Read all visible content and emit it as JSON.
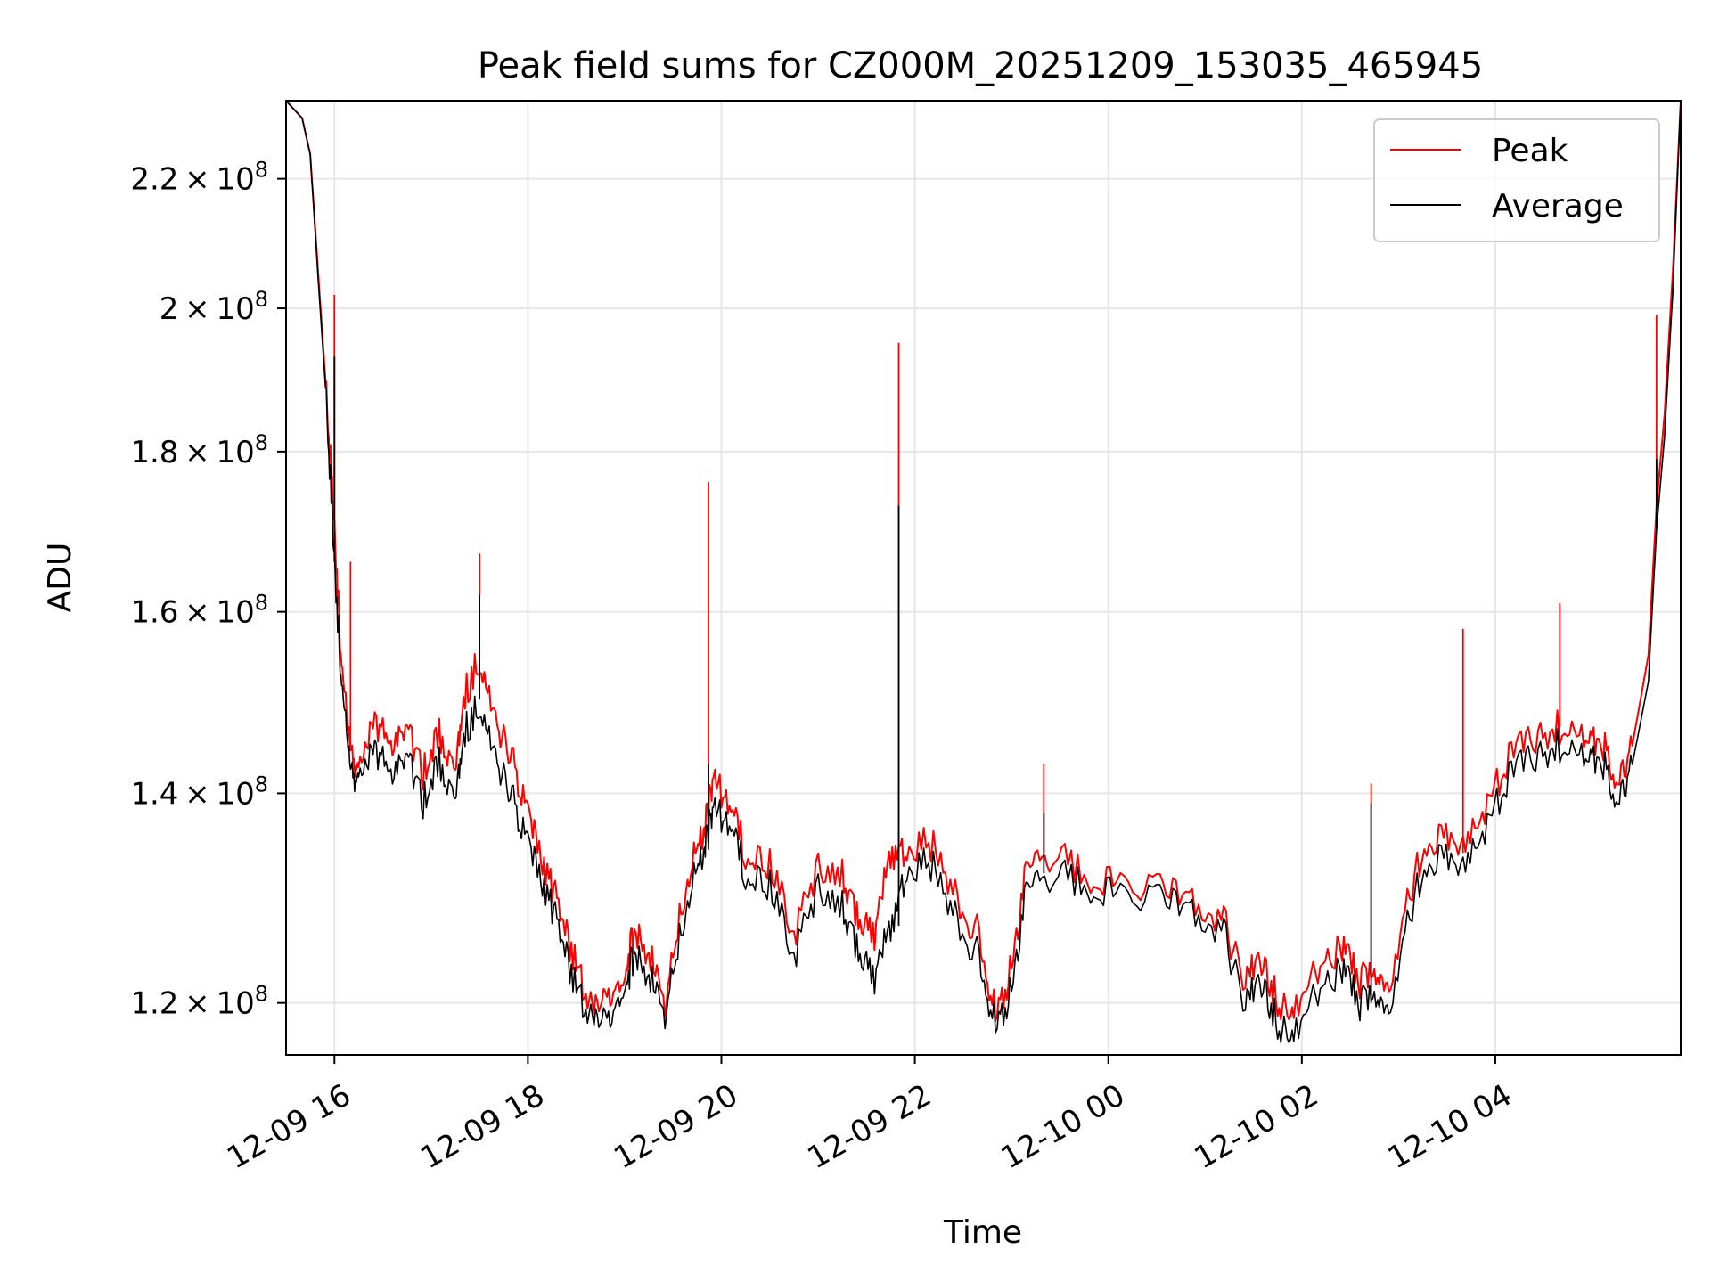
{
  "chart_data": {
    "type": "line",
    "title": "Peak field sums for CZ000M_20251209_153035_465945",
    "xlabel": "Time",
    "ylabel": "ADU",
    "y_scale": "log",
    "ylim": [
      115500000.0,
      233000000.0
    ],
    "xlim": [
      "2025-12-09 15:30",
      "2025-12-10 05:55"
    ],
    "grid": true,
    "legend_position": "upper right",
    "x_ticks": [
      {
        "label": "12-09 16",
        "value": "2025-12-09 16:00"
      },
      {
        "label": "12-09 18",
        "value": "2025-12-09 18:00"
      },
      {
        "label": "12-09 20",
        "value": "2025-12-09 20:00"
      },
      {
        "label": "12-09 22",
        "value": "2025-12-09 22:00"
      },
      {
        "label": "12-10 00",
        "value": "2025-12-10 00:00"
      },
      {
        "label": "12-10 02",
        "value": "2025-12-10 02:00"
      },
      {
        "label": "12-10 04",
        "value": "2025-12-10 04:00"
      }
    ],
    "y_ticks": [
      {
        "mantissa": "1.2",
        "exponent": "8",
        "value": 120000000.0
      },
      {
        "mantissa": "1.4",
        "exponent": "8",
        "value": 140000000.0
      },
      {
        "mantissa": "1.6",
        "exponent": "8",
        "value": 160000000.0
      },
      {
        "mantissa": "1.8",
        "exponent": "8",
        "value": 180000000.0
      },
      {
        "mantissa": "2",
        "exponent": "8",
        "value": 200000000.0
      },
      {
        "mantissa": "2.2",
        "exponent": "8",
        "value": 220000000.0
      }
    ],
    "series": [
      {
        "name": "Peak",
        "color": "#ff0000",
        "points": [
          [
            "2025-12-09 15:30",
            233000000.0
          ],
          [
            "2025-12-09 15:40",
            230000000.0
          ],
          [
            "2025-12-09 15:45",
            224000000.0
          ],
          [
            "2025-12-09 15:50",
            205000000.0
          ],
          [
            "2025-12-09 15:55",
            188000000.0
          ],
          [
            "2025-12-09 16:00",
            170000000.0
          ],
          [
            "2025-12-09 16:05",
            152000000.0
          ],
          [
            "2025-12-09 16:10",
            145000000.0
          ],
          [
            "2025-12-09 16:15",
            142000000.0
          ],
          [
            "2025-12-09 16:25",
            148000000.0
          ],
          [
            "2025-12-09 16:35",
            145000000.0
          ],
          [
            "2025-12-09 16:45",
            147000000.0
          ],
          [
            "2025-12-09 16:55",
            142000000.0
          ],
          [
            "2025-12-09 17:05",
            146000000.0
          ],
          [
            "2025-12-09 17:15",
            143000000.0
          ],
          [
            "2025-12-09 17:20",
            150000000.0
          ],
          [
            "2025-12-09 17:30",
            155000000.0
          ],
          [
            "2025-12-09 17:40",
            148000000.0
          ],
          [
            "2025-12-09 17:50",
            144000000.0
          ],
          [
            "2025-12-09 18:00",
            138000000.0
          ],
          [
            "2025-12-09 18:10",
            132000000.0
          ],
          [
            "2025-12-09 18:20",
            129000000.0
          ],
          [
            "2025-12-09 18:30",
            123000000.0
          ],
          [
            "2025-12-09 18:40",
            120000000.0
          ],
          [
            "2025-12-09 18:50",
            121000000.0
          ],
          [
            "2025-12-09 19:00",
            122000000.0
          ],
          [
            "2025-12-09 19:05",
            126000000.0
          ],
          [
            "2025-12-09 19:15",
            125000000.0
          ],
          [
            "2025-12-09 19:25",
            119000000.0
          ],
          [
            "2025-12-09 19:35",
            129000000.0
          ],
          [
            "2025-12-09 19:45",
            135000000.0
          ],
          [
            "2025-12-09 19:50",
            137000000.0
          ],
          [
            "2025-12-09 19:55",
            141000000.0
          ],
          [
            "2025-12-09 20:05",
            139000000.0
          ],
          [
            "2025-12-09 20:15",
            134000000.0
          ],
          [
            "2025-12-09 20:30",
            133000000.0
          ],
          [
            "2025-12-09 20:45",
            126000000.0
          ],
          [
            "2025-12-09 21:00",
            133000000.0
          ],
          [
            "2025-12-09 21:15",
            132000000.0
          ],
          [
            "2025-12-09 21:25",
            128000000.0
          ],
          [
            "2025-12-09 21:35",
            126000000.0
          ],
          [
            "2025-12-09 21:45",
            134000000.0
          ],
          [
            "2025-12-09 21:55",
            134000000.0
          ],
          [
            "2025-12-09 22:10",
            135000000.0
          ],
          [
            "2025-12-09 22:25",
            130000000.0
          ],
          [
            "2025-12-09 22:40",
            126000000.0
          ],
          [
            "2025-12-09 22:50",
            119000000.0
          ],
          [
            "2025-12-09 23:00",
            123000000.0
          ],
          [
            "2025-12-09 23:10",
            133000000.0
          ],
          [
            "2025-12-09 23:25",
            134000000.0
          ],
          [
            "2025-12-09 23:45",
            132000000.0
          ],
          [
            "2025-12-10 00:05",
            131000000.0
          ],
          [
            "2025-12-10 00:30",
            131000000.0
          ],
          [
            "2025-12-10 00:50",
            129000000.0
          ],
          [
            "2025-12-10 01:10",
            128000000.0
          ],
          [
            "2025-12-10 01:25",
            122000000.0
          ],
          [
            "2025-12-10 01:35",
            124000000.0
          ],
          [
            "2025-12-10 01:45",
            120000000.0
          ],
          [
            "2025-12-10 01:55",
            119000000.0
          ],
          [
            "2025-12-10 02:10",
            123000000.0
          ],
          [
            "2025-12-10 02:25",
            125000000.0
          ],
          [
            "2025-12-10 02:35",
            122000000.0
          ],
          [
            "2025-12-10 02:45",
            122000000.0
          ],
          [
            "2025-12-10 02:55",
            122000000.0
          ],
          [
            "2025-12-10 03:10",
            132000000.0
          ],
          [
            "2025-12-10 03:25",
            136000000.0
          ],
          [
            "2025-12-10 03:40",
            134000000.0
          ],
          [
            "2025-12-10 03:55",
            139000000.0
          ],
          [
            "2025-12-10 04:10",
            144000000.0
          ],
          [
            "2025-12-10 04:25",
            146000000.0
          ],
          [
            "2025-12-10 04:40",
            147000000.0
          ],
          [
            "2025-12-10 04:55",
            146000000.0
          ],
          [
            "2025-12-10 05:05",
            146000000.0
          ],
          [
            "2025-12-10 05:15",
            141000000.0
          ],
          [
            "2025-12-10 05:25",
            145000000.0
          ],
          [
            "2025-12-10 05:35",
            155000000.0
          ],
          [
            "2025-12-10 05:40",
            173000000.0
          ],
          [
            "2025-12-10 05:45",
            185000000.0
          ],
          [
            "2025-12-10 05:50",
            205000000.0
          ],
          [
            "2025-12-10 05:55",
            233000000.0
          ]
        ],
        "spikes": [
          [
            "2025-12-09 16:00",
            202000000.0
          ],
          [
            "2025-12-09 16:10",
            166000000.0
          ],
          [
            "2025-12-09 17:30",
            167000000.0
          ],
          [
            "2025-12-09 19:52",
            176000000.0
          ],
          [
            "2025-12-09 21:50",
            195000000.0
          ],
          [
            "2025-12-09 23:20",
            143000000.0
          ],
          [
            "2025-12-10 02:43",
            141000000.0
          ],
          [
            "2025-12-10 03:40",
            158000000.0
          ],
          [
            "2025-12-10 04:40",
            161000000.0
          ],
          [
            "2025-12-10 05:40",
            199000000.0
          ]
        ]
      },
      {
        "name": "Average",
        "color": "#000000",
        "points": [
          [
            "2025-12-09 15:30",
            233000000.0
          ],
          [
            "2025-12-09 15:40",
            230000000.0
          ],
          [
            "2025-12-09 15:45",
            224000000.0
          ],
          [
            "2025-12-09 15:50",
            204000000.0
          ],
          [
            "2025-12-09 15:55",
            187000000.0
          ],
          [
            "2025-12-09 16:00",
            166000000.0
          ],
          [
            "2025-12-09 16:05",
            150000000.0
          ],
          [
            "2025-12-09 16:10",
            143000000.0
          ],
          [
            "2025-12-09 16:15",
            141000000.0
          ],
          [
            "2025-12-09 16:25",
            145000000.0
          ],
          [
            "2025-12-09 16:35",
            142000000.0
          ],
          [
            "2025-12-09 16:45",
            144000000.0
          ],
          [
            "2025-12-09 16:55",
            139000000.0
          ],
          [
            "2025-12-09 17:05",
            143000000.0
          ],
          [
            "2025-12-09 17:15",
            140000000.0
          ],
          [
            "2025-12-09 17:20",
            146000000.0
          ],
          [
            "2025-12-09 17:30",
            150000000.0
          ],
          [
            "2025-12-09 17:40",
            144000000.0
          ],
          [
            "2025-12-09 17:50",
            140000000.0
          ],
          [
            "2025-12-09 18:00",
            135000000.0
          ],
          [
            "2025-12-09 18:10",
            130000000.0
          ],
          [
            "2025-12-09 18:20",
            127000000.0
          ],
          [
            "2025-12-09 18:30",
            121000000.0
          ],
          [
            "2025-12-09 18:40",
            119000000.0
          ],
          [
            "2025-12-09 18:50",
            119000000.0
          ],
          [
            "2025-12-09 19:00",
            121000000.0
          ],
          [
            "2025-12-09 19:05",
            124000000.0
          ],
          [
            "2025-12-09 19:15",
            123000000.0
          ],
          [
            "2025-12-09 19:25",
            118000000.0
          ],
          [
            "2025-12-09 19:35",
            127000000.0
          ],
          [
            "2025-12-09 19:45",
            133000000.0
          ],
          [
            "2025-12-09 19:50",
            135000000.0
          ],
          [
            "2025-12-09 19:55",
            138000000.0
          ],
          [
            "2025-12-09 20:05",
            137000000.0
          ],
          [
            "2025-12-09 20:15",
            132000000.0
          ],
          [
            "2025-12-09 20:30",
            131000000.0
          ],
          [
            "2025-12-09 20:45",
            124000000.0
          ],
          [
            "2025-12-09 21:00",
            131000000.0
          ],
          [
            "2025-12-09 21:15",
            129000000.0
          ],
          [
            "2025-12-09 21:25",
            125000000.0
          ],
          [
            "2025-12-09 21:35",
            122000000.0
          ],
          [
            "2025-12-09 21:45",
            127000000.0
          ],
          [
            "2025-12-09 21:55",
            132000000.0
          ],
          [
            "2025-12-09 22:10",
            133000000.0
          ],
          [
            "2025-12-09 22:25",
            128000000.0
          ],
          [
            "2025-12-09 22:40",
            124000000.0
          ],
          [
            "2025-12-09 22:50",
            118000000.0
          ],
          [
            "2025-12-09 23:00",
            121000000.0
          ],
          [
            "2025-12-09 23:10",
            131000000.0
          ],
          [
            "2025-12-09 23:25",
            132000000.0
          ],
          [
            "2025-12-09 23:45",
            131000000.0
          ],
          [
            "2025-12-10 00:05",
            130000000.0
          ],
          [
            "2025-12-10 00:30",
            130000000.0
          ],
          [
            "2025-12-10 00:50",
            128000000.0
          ],
          [
            "2025-12-10 01:10",
            127000000.0
          ],
          [
            "2025-12-10 01:25",
            120000000.0
          ],
          [
            "2025-12-10 01:35",
            122000000.0
          ],
          [
            "2025-12-10 01:45",
            118000000.0
          ],
          [
            "2025-12-10 01:55",
            117000000.0
          ],
          [
            "2025-12-10 02:10",
            121000000.0
          ],
          [
            "2025-12-10 02:25",
            123000000.0
          ],
          [
            "2025-12-10 02:35",
            120000000.0
          ],
          [
            "2025-12-10 02:45",
            120000000.0
          ],
          [
            "2025-12-10 02:55",
            120000000.0
          ],
          [
            "2025-12-10 03:10",
            130000000.0
          ],
          [
            "2025-12-10 03:25",
            134000000.0
          ],
          [
            "2025-12-10 03:40",
            132000000.0
          ],
          [
            "2025-12-10 03:55",
            137000000.0
          ],
          [
            "2025-12-10 04:10",
            142000000.0
          ],
          [
            "2025-12-10 04:25",
            144000000.0
          ],
          [
            "2025-12-10 04:40",
            145000000.0
          ],
          [
            "2025-12-10 04:55",
            144000000.0
          ],
          [
            "2025-12-10 05:05",
            144000000.0
          ],
          [
            "2025-12-10 05:15",
            139000000.0
          ],
          [
            "2025-12-10 05:25",
            143000000.0
          ],
          [
            "2025-12-10 05:35",
            152000000.0
          ],
          [
            "2025-12-10 05:40",
            170000000.0
          ],
          [
            "2025-12-10 05:45",
            182000000.0
          ],
          [
            "2025-12-10 05:50",
            202000000.0
          ],
          [
            "2025-12-10 05:55",
            233000000.0
          ]
        ],
        "spikes": [
          [
            "2025-12-09 16:00",
            193000000.0
          ],
          [
            "2025-12-09 17:30",
            162000000.0
          ],
          [
            "2025-12-09 19:52",
            143000000.0
          ],
          [
            "2025-12-09 21:50",
            173000000.0
          ],
          [
            "2025-12-09 23:20",
            138000000.0
          ],
          [
            "2025-12-10 02:43",
            139000000.0
          ],
          [
            "2025-12-10 05:40",
            179000000.0
          ]
        ]
      }
    ]
  }
}
